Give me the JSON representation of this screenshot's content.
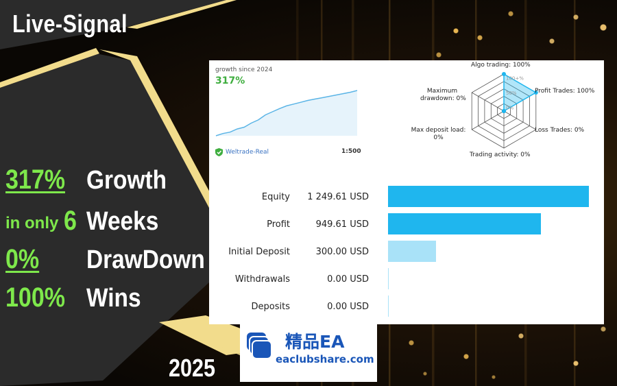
{
  "banner": {
    "title": "Live-Signal",
    "year": "2025",
    "stats": [
      {
        "prefix": "",
        "value": "317%",
        "label": "Growth"
      },
      {
        "prefix": "in only",
        "value": "6",
        "label": "Weeks"
      },
      {
        "prefix": "",
        "value": "0%",
        "label": "DrawDown"
      },
      {
        "prefix": "",
        "value": "100%",
        "label": "Wins"
      }
    ],
    "colors": {
      "accent_green": "#7ee84b",
      "gold": "#f2dc8c",
      "panel": "#2b2b2b"
    }
  },
  "signal_card": {
    "growth_label": "growth since 2024",
    "growth_value": "317%",
    "broker": "Weltrade-Real",
    "leverage": "1:500",
    "growth_series": [
      0,
      5,
      8,
      15,
      19,
      28,
      35,
      46,
      53,
      60,
      66,
      70,
      74,
      78,
      81,
      84,
      87,
      90,
      93,
      96,
      100
    ],
    "radar": {
      "scale_labels": [
        "100+%",
        "50%",
        "0%"
      ],
      "axes": [
        {
          "label": "Algo trading: 100%",
          "value": 1.0
        },
        {
          "label": "Profit Trades: 100%",
          "value": 1.0
        },
        {
          "label": "Loss Trades: 0%",
          "value": 0
        },
        {
          "label": "Trading activity: 0%",
          "value": 0
        },
        {
          "label": "Max deposit load: 0%",
          "value": 0
        },
        {
          "label": "Maximum drawdown: 0%",
          "value": 0
        }
      ]
    },
    "metrics": [
      {
        "label": "Equity",
        "value": "1 249.61 USD",
        "amount": 1249.61
      },
      {
        "label": "Profit",
        "value": "949.61 USD",
        "amount": 949.61
      },
      {
        "label": "Initial Deposit",
        "value": "300.00 USD",
        "amount": 300.0
      },
      {
        "label": "Withdrawals",
        "value": "0.00 USD",
        "amount": 0
      },
      {
        "label": "Deposits",
        "value": "0.00 USD",
        "amount": 0
      }
    ],
    "colors": {
      "bar": "#1fb6ee",
      "bar_light": "#a9e2f8",
      "growth_green": "#3fae3f",
      "line": "#5ab4e6"
    }
  },
  "watermark": {
    "cn_text": "精品EA",
    "url": "eaclubshare.com",
    "color": "#1a56b8"
  }
}
